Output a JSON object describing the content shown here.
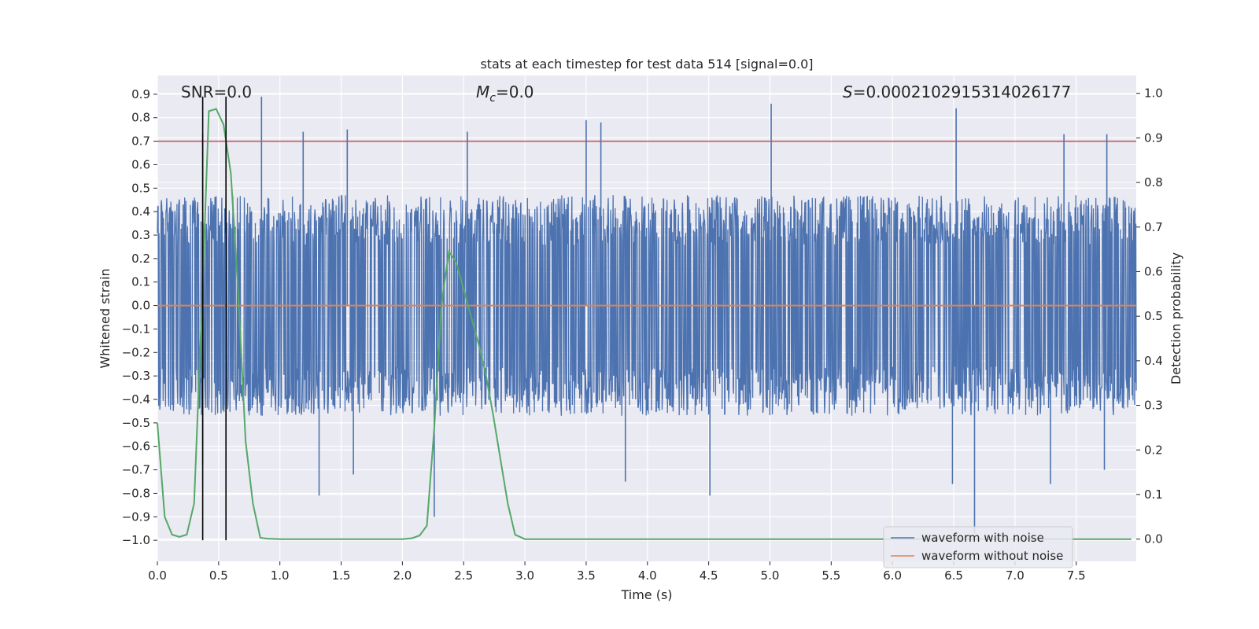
{
  "chart_data": {
    "type": "line",
    "title": "stats at each timestep for test data 514 [signal=0.0]",
    "xlabel": "Time (s)",
    "ylabel": "Whitened strain",
    "y2label": "Detection probability",
    "xlim": [
      0.0,
      7.99
    ],
    "ylim": [
      -1.09,
      0.98
    ],
    "y2lim": [
      -0.05,
      1.04
    ],
    "x_ticks": [
      0.0,
      0.5,
      1.0,
      1.5,
      2.0,
      2.5,
      3.0,
      3.5,
      4.0,
      4.5,
      5.0,
      5.5,
      6.0,
      6.5,
      7.0,
      7.5
    ],
    "x_tick_labels": [
      "0.0",
      "0.5",
      "1.0",
      "1.5",
      "2.0",
      "2.5",
      "3.0",
      "3.5",
      "4.0",
      "4.5",
      "5.0",
      "5.5",
      "6.0",
      "6.5",
      "7.0",
      "7.5"
    ],
    "y_ticks": [
      0.9,
      0.8,
      0.7,
      0.6,
      0.5,
      0.4,
      0.3,
      0.2,
      0.1,
      0.0,
      -0.1,
      -0.2,
      -0.3,
      -0.4,
      -0.5,
      -0.6,
      -0.7,
      -0.8,
      -0.9,
      -1.0
    ],
    "y_tick_labels": [
      "0.9",
      "0.8",
      "0.7",
      "0.6",
      "0.5",
      "0.4",
      "0.3",
      "0.2",
      "0.1",
      "0.0",
      "−0.1",
      "−0.2",
      "−0.3",
      "−0.4",
      "−0.5",
      "−0.6",
      "−0.7",
      "−0.8",
      "−0.9",
      "−1.0"
    ],
    "y2_ticks": [
      1.0,
      0.9,
      0.8,
      0.7,
      0.6,
      0.5,
      0.4,
      0.3,
      0.2,
      0.1,
      0.0
    ],
    "y2_tick_labels": [
      "1.0",
      "0.9",
      "0.8",
      "0.7",
      "0.6",
      "0.5",
      "0.4",
      "0.3",
      "0.2",
      "0.1",
      "0.0"
    ],
    "threshold": 0.7,
    "signal_markers_x": [
      0.37,
      0.56
    ],
    "annotations": {
      "snr": "SNR=0.0",
      "mc_symbol": "M",
      "mc_sub": "c",
      "mc_value": "=0.0",
      "s_symbol": "S",
      "s_value": "=0.0002102915314026177"
    },
    "legend": {
      "position": "lower-right",
      "entries": [
        "waveform with noise",
        "waveform without noise"
      ]
    },
    "colors": {
      "noise": "#4c72b0",
      "clean": "#dd8452",
      "probability": "#55a868",
      "threshold": "#c44e52",
      "marker": "#000000",
      "axes_bg": "#eaeaf2",
      "grid": "#ffffff"
    },
    "series": [
      {
        "name": "waveform with noise",
        "kind": "noise",
        "amplitude_envelope": [
          -0.47,
          0.47
        ],
        "spikes": [
          {
            "x": 0.85,
            "y": 0.89
          },
          {
            "x": 0.37,
            "y": 0.73
          },
          {
            "x": 1.19,
            "y": 0.74
          },
          {
            "x": 1.55,
            "y": 0.75
          },
          {
            "x": 3.5,
            "y": 0.79
          },
          {
            "x": 3.62,
            "y": 0.78
          },
          {
            "x": 5.01,
            "y": 0.86
          },
          {
            "x": 6.52,
            "y": 0.84
          },
          {
            "x": 7.4,
            "y": 0.73
          },
          {
            "x": 7.75,
            "y": 0.73
          },
          {
            "x": 2.53,
            "y": 0.74
          },
          {
            "x": 0.37,
            "y": -0.68
          },
          {
            "x": 1.32,
            "y": -0.81
          },
          {
            "x": 1.6,
            "y": -0.72
          },
          {
            "x": 2.26,
            "y": -0.9
          },
          {
            "x": 3.82,
            "y": -0.75
          },
          {
            "x": 4.51,
            "y": -0.81
          },
          {
            "x": 6.67,
            "y": -0.97
          },
          {
            "x": 6.49,
            "y": -0.76
          },
          {
            "x": 7.29,
            "y": -0.76
          },
          {
            "x": 7.73,
            "y": -0.7
          }
        ]
      },
      {
        "name": "waveform without noise",
        "kind": "flat",
        "y": 0.0
      },
      {
        "name": "detection probability",
        "axis": "right",
        "x": [
          0.0,
          0.06,
          0.12,
          0.18,
          0.24,
          0.3,
          0.36,
          0.42,
          0.48,
          0.54,
          0.6,
          0.66,
          0.72,
          0.78,
          0.84,
          0.9,
          1.0,
          2.0,
          2.08,
          2.14,
          2.2,
          2.26,
          2.32,
          2.38,
          2.44,
          2.5,
          2.56,
          2.62,
          2.68,
          2.74,
          2.8,
          2.86,
          2.92,
          3.0,
          7.95
        ],
        "y": [
          0.26,
          0.05,
          0.01,
          0.005,
          0.01,
          0.08,
          0.5,
          0.96,
          0.965,
          0.93,
          0.82,
          0.55,
          0.22,
          0.08,
          0.003,
          0.001,
          0.0,
          0.0,
          0.002,
          0.008,
          0.03,
          0.25,
          0.53,
          0.645,
          0.62,
          0.56,
          0.5,
          0.44,
          0.37,
          0.28,
          0.18,
          0.08,
          0.01,
          0.0,
          0.0
        ]
      }
    ]
  }
}
